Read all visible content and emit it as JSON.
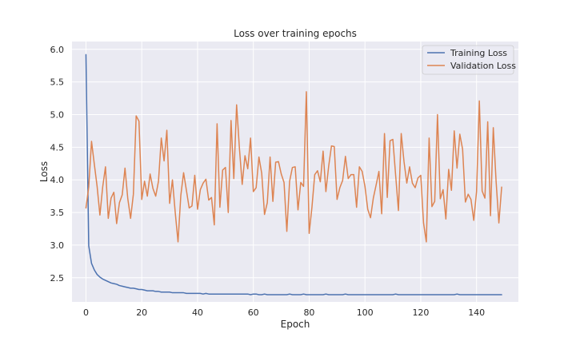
{
  "chart_data": {
    "type": "line",
    "title": "Loss over training epochs",
    "xlabel": "Epoch",
    "ylabel": "Loss",
    "xlim": [
      -5,
      155
    ],
    "ylim": [
      2.13,
      6.12
    ],
    "xticks": [
      0,
      20,
      40,
      60,
      80,
      100,
      120,
      140
    ],
    "yticks": [
      2.5,
      3.0,
      3.5,
      4.0,
      4.5,
      5.0,
      5.5,
      6.0
    ],
    "xtick_labels": [
      "0",
      "20",
      "40",
      "60",
      "80",
      "100",
      "120",
      "140"
    ],
    "ytick_labels": [
      "2.5",
      "3.0",
      "3.5",
      "4.0",
      "4.5",
      "5.0",
      "5.5",
      "6.0"
    ],
    "grid": true,
    "legend_position": "top-right",
    "series": [
      {
        "name": "Training Loss",
        "color": "#4C72B0",
        "x_start": 0,
        "values": [
          5.92,
          2.99,
          2.72,
          2.62,
          2.55,
          2.51,
          2.48,
          2.46,
          2.44,
          2.42,
          2.41,
          2.4,
          2.38,
          2.37,
          2.36,
          2.35,
          2.34,
          2.34,
          2.33,
          2.32,
          2.32,
          2.31,
          2.3,
          2.3,
          2.3,
          2.29,
          2.29,
          2.28,
          2.28,
          2.28,
          2.28,
          2.27,
          2.27,
          2.27,
          2.27,
          2.27,
          2.26,
          2.26,
          2.26,
          2.26,
          2.26,
          2.26,
          2.25,
          2.26,
          2.25,
          2.25,
          2.25,
          2.25,
          2.25,
          2.25,
          2.25,
          2.25,
          2.25,
          2.25,
          2.25,
          2.25,
          2.25,
          2.25,
          2.25,
          2.24,
          2.25,
          2.25,
          2.24,
          2.24,
          2.25,
          2.24,
          2.24,
          2.24,
          2.24,
          2.24,
          2.24,
          2.24,
          2.24,
          2.25,
          2.24,
          2.24,
          2.24,
          2.24,
          2.25,
          2.24,
          2.24,
          2.24,
          2.24,
          2.24,
          2.24,
          2.24,
          2.25,
          2.24,
          2.24,
          2.24,
          2.24,
          2.24,
          2.24,
          2.25,
          2.24,
          2.24,
          2.24,
          2.24,
          2.24,
          2.24,
          2.24,
          2.24,
          2.24,
          2.24,
          2.24,
          2.24,
          2.24,
          2.24,
          2.24,
          2.24,
          2.24,
          2.25,
          2.24,
          2.24,
          2.24,
          2.24,
          2.24,
          2.24,
          2.24,
          2.24,
          2.24,
          2.24,
          2.24,
          2.24,
          2.24,
          2.24,
          2.24,
          2.24,
          2.24,
          2.24,
          2.24,
          2.24,
          2.24,
          2.25,
          2.24,
          2.24,
          2.24,
          2.24,
          2.24,
          2.24,
          2.24,
          2.24,
          2.24,
          2.24,
          2.24,
          2.24,
          2.24,
          2.24,
          2.24,
          2.24
        ]
      },
      {
        "name": "Validation Loss",
        "color": "#DD8452",
        "x_start": 0,
        "values": [
          3.57,
          3.89,
          4.59,
          4.24,
          3.9,
          3.46,
          3.89,
          4.2,
          3.41,
          3.72,
          3.81,
          3.33,
          3.65,
          3.77,
          4.18,
          3.71,
          3.41,
          3.78,
          4.98,
          4.9,
          3.7,
          3.98,
          3.75,
          4.09,
          3.87,
          3.75,
          3.98,
          4.64,
          4.29,
          4.76,
          3.64,
          4.0,
          3.5,
          3.05,
          3.76,
          4.11,
          3.84,
          3.57,
          3.6,
          4.07,
          3.55,
          3.85,
          3.95,
          4.01,
          3.69,
          3.73,
          3.31,
          4.86,
          3.58,
          4.15,
          4.19,
          3.5,
          4.91,
          4.02,
          5.15,
          4.49,
          3.93,
          4.37,
          4.17,
          4.64,
          3.82,
          3.88,
          4.35,
          4.1,
          3.47,
          3.65,
          4.35,
          3.67,
          4.27,
          4.28,
          4.09,
          3.96,
          3.21,
          3.98,
          4.19,
          4.2,
          3.54,
          3.96,
          3.9,
          5.35,
          3.18,
          3.58,
          4.08,
          4.14,
          3.97,
          4.44,
          3.82,
          4.21,
          4.52,
          4.51,
          3.7,
          3.88,
          3.99,
          4.36,
          4.02,
          4.08,
          4.08,
          3.58,
          4.2,
          4.13,
          3.9,
          3.55,
          3.42,
          3.72,
          3.92,
          4.13,
          3.48,
          4.71,
          3.73,
          4.6,
          4.62,
          4.07,
          3.53,
          4.71,
          4.28,
          3.95,
          4.2,
          3.95,
          3.88,
          4.03,
          4.07,
          3.34,
          3.05,
          4.64,
          3.59,
          3.67,
          5.0,
          3.71,
          3.85,
          3.4,
          4.16,
          3.84,
          4.75,
          4.18,
          4.7,
          4.47,
          3.66,
          3.78,
          3.7,
          3.38,
          3.82,
          5.21,
          3.83,
          3.72,
          4.89,
          3.45,
          4.8,
          3.98,
          3.34,
          3.89
        ]
      }
    ]
  },
  "colors": {
    "plot_background": "#EAEAF2",
    "grid": "#FFFFFF"
  }
}
